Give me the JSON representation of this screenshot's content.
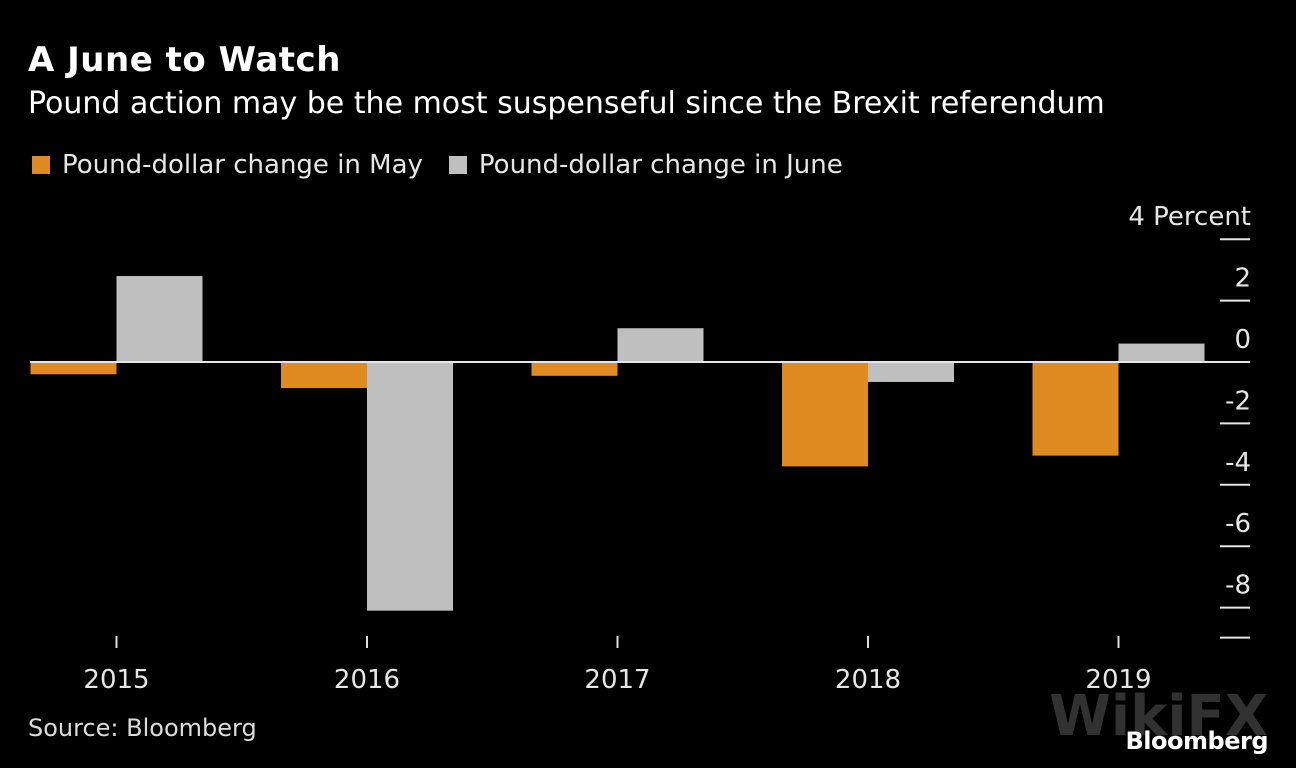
{
  "header": {
    "title": "A June to Watch",
    "subtitle": "Pound action may be the most suspenseful since the Brexit referendum"
  },
  "footer": {
    "source": "Source: Bloomberg",
    "brand": "Bloomberg",
    "watermark": "WikiFX"
  },
  "chart_data": {
    "type": "bar",
    "title": "A June to Watch",
    "subtitle": "Pound action may be the most suspenseful since the Brexit referendum",
    "categories": [
      "2015",
      "2016",
      "2017",
      "2018",
      "2019"
    ],
    "series": [
      {
        "name": "Pound-dollar change in May",
        "color": "#E08B22",
        "values": [
          -0.4,
          -0.85,
          -0.45,
          -3.4,
          -3.05
        ]
      },
      {
        "name": "Pound-dollar change in June",
        "color": "#BFBFBF",
        "values": [
          2.8,
          -8.1,
          1.1,
          -0.65,
          0.6
        ]
      }
    ],
    "xlabel": "",
    "ylabel": "Percent",
    "y_unit_label": "4 Percent",
    "yticks": [
      4,
      2,
      0,
      -2,
      -4,
      -6,
      -8
    ],
    "ytick_labels": [
      "4 Percent",
      "2",
      "0",
      "-2",
      "-4",
      "-6",
      "-8"
    ],
    "ylim": [
      -8.1,
      4
    ],
    "yaxis_side": "right",
    "legend_position": "top-left",
    "grid": false,
    "source": "Source: Bloomberg"
  }
}
